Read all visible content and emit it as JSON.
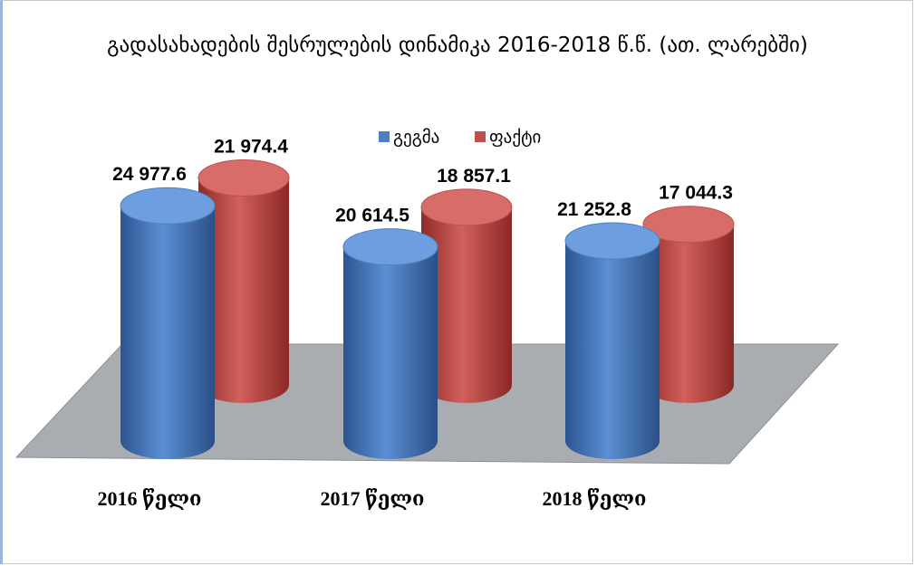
{
  "chart_data": {
    "type": "bar",
    "title": "გადასახადების შესრულების დინამიკა 2016-2018  წ.წ. (ათ. ლარებში)",
    "categories": [
      "2016 წელი",
      "2017 წელი",
      "2018 წელი"
    ],
    "series": [
      {
        "name": "გეგმა",
        "color": "#4f81bd",
        "values": [
          24977.6,
          20614.5,
          21252.8
        ],
        "value_labels": [
          "24 977.6",
          "20 614.5",
          "21 252.8"
        ]
      },
      {
        "name": "ფაქტი",
        "color": "#c0504d",
        "values": [
          21974.4,
          18857.1,
          17044.3
        ],
        "value_labels": [
          "21 974.4",
          "18 857.1",
          "17 044.3"
        ]
      }
    ]
  }
}
